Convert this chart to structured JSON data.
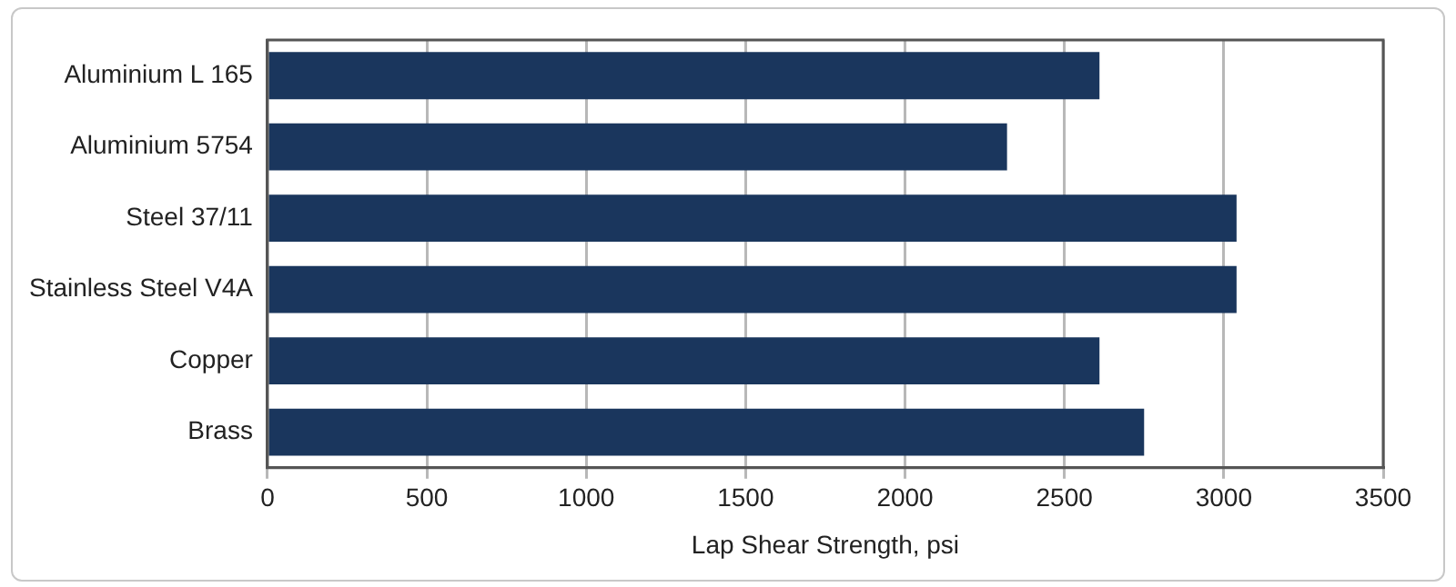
{
  "chart_data": {
    "type": "bar",
    "orientation": "horizontal",
    "xlabel": "Lap Shear Strength, psi",
    "categories": [
      "Aluminium L 165",
      "Aluminium 5754",
      "Steel 37/11",
      "Stainless Steel V4A",
      "Copper",
      "Brass"
    ],
    "values": [
      2610,
      2320,
      3040,
      3040,
      2610,
      2750
    ],
    "color": "#1a365d",
    "xlim": [
      0,
      3500
    ],
    "xticks": [
      0,
      500,
      1000,
      1500,
      2000,
      2500,
      3000,
      3500
    ],
    "grid": "x",
    "legend": false
  }
}
